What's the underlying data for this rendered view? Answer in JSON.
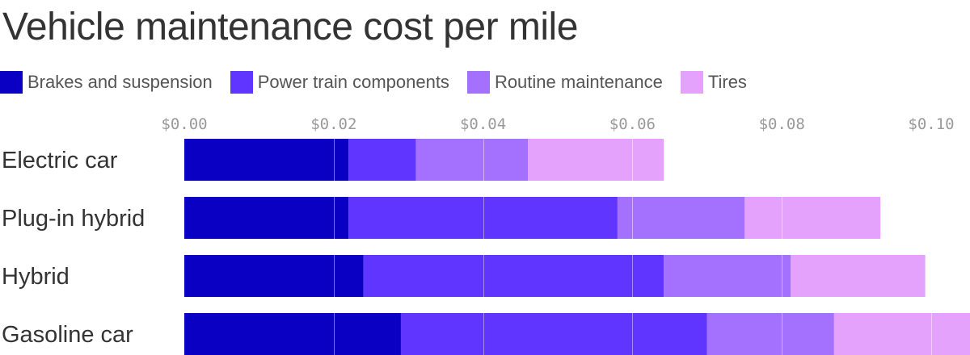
{
  "chart_data": {
    "type": "bar",
    "orientation": "horizontal",
    "stacked": true,
    "title": "Vehicle maintenance cost per mile",
    "xlabel": "",
    "ylabel": "",
    "xlim": [
      0,
      0.105
    ],
    "grid": true,
    "legend_position": "top-left",
    "x_ticks": [
      0,
      0.02,
      0.04,
      0.06,
      0.08,
      0.1
    ],
    "x_tick_labels": [
      "$0.00",
      "$0.02",
      "$0.04",
      "$0.06",
      "$0.08",
      "$0.10"
    ],
    "categories": [
      "Electric car",
      "Plug-in hybrid",
      "Hybrid",
      "Gasoline car"
    ],
    "series": [
      {
        "name": "Brakes and suspension",
        "color": "#0a00c3",
        "values": [
          0.022,
          0.022,
          0.024,
          0.029
        ]
      },
      {
        "name": "Power train components",
        "color": "#5f35ff",
        "values": [
          0.009,
          0.036,
          0.0402,
          0.041
        ]
      },
      {
        "name": "Routine maintenance",
        "color": "#a371fe",
        "values": [
          0.015,
          0.017,
          0.017,
          0.017
        ]
      },
      {
        "name": "Tires",
        "color": "#e5a2fc",
        "values": [
          0.0182,
          0.0182,
          0.018,
          0.0182
        ]
      }
    ]
  }
}
